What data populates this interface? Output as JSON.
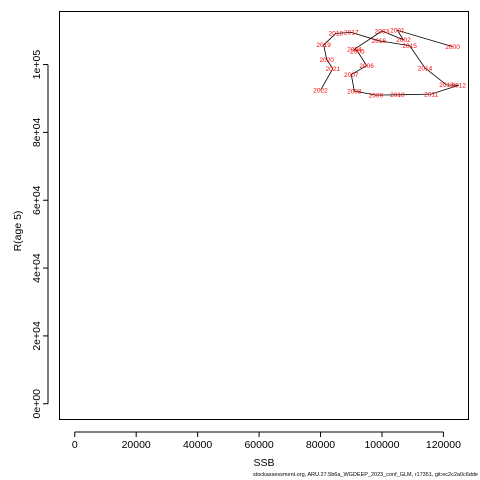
{
  "footer_text": "stockassessment.org, ARU.27.5b6a_WGDEEP_2023_conf_GLM, r17351, git:ec2c2a0c6dde",
  "chart_data": {
    "type": "line",
    "xlabel": "SSB",
    "ylabel": "R(age 5)",
    "xlim": [
      -4800,
      128000
    ],
    "ylim": [
      -4500,
      115500
    ],
    "x_ticks": [
      0,
      20000,
      40000,
      60000,
      80000,
      100000,
      120000
    ],
    "x_tick_labels": [
      "0",
      "20000",
      "40000",
      "60000",
      "80000",
      "100000",
      "120000"
    ],
    "y_ticks": [
      0,
      20000,
      40000,
      60000,
      80000,
      100000
    ],
    "y_tick_labels": [
      "0e+00",
      "2e+04",
      "4e+04",
      "6e+04",
      "8e+04",
      "1e+05"
    ],
    "line_color": "#000000",
    "label_color": "#ff0000",
    "points": [
      {
        "label": "2000",
        "x": 123000,
        "y": 105300
      },
      {
        "label": "2001",
        "x": 105000,
        "y": 110100
      },
      {
        "label": "2002",
        "x": 107000,
        "y": 107300
      },
      {
        "label": "2003",
        "x": 100000,
        "y": 109900
      },
      {
        "label": "2004",
        "x": 91000,
        "y": 104500
      },
      {
        "label": "2005",
        "x": 92000,
        "y": 104000
      },
      {
        "label": "2006",
        "x": 95000,
        "y": 99700
      },
      {
        "label": "2007",
        "x": 90000,
        "y": 97000
      },
      {
        "label": "2008",
        "x": 91000,
        "y": 92200
      },
      {
        "label": "2009",
        "x": 98000,
        "y": 91000
      },
      {
        "label": "2010",
        "x": 105000,
        "y": 91100
      },
      {
        "label": "2011",
        "x": 116000,
        "y": 91300
      },
      {
        "label": "2012",
        "x": 125000,
        "y": 93900
      },
      {
        "label": "2013",
        "x": 121000,
        "y": 94000
      },
      {
        "label": "2014",
        "x": 114000,
        "y": 99000
      },
      {
        "label": "2015",
        "x": 109000,
        "y": 105600
      },
      {
        "label": "2016",
        "x": 99000,
        "y": 107000
      },
      {
        "label": "2017",
        "x": 90000,
        "y": 109500
      },
      {
        "label": "2018",
        "x": 85000,
        "y": 109200
      },
      {
        "label": "2019",
        "x": 81000,
        "y": 105800
      },
      {
        "label": "2020",
        "x": 82000,
        "y": 101500
      },
      {
        "label": "2021",
        "x": 84000,
        "y": 98800
      },
      {
        "label": "2022",
        "x": 80000,
        "y": 92400
      }
    ]
  }
}
